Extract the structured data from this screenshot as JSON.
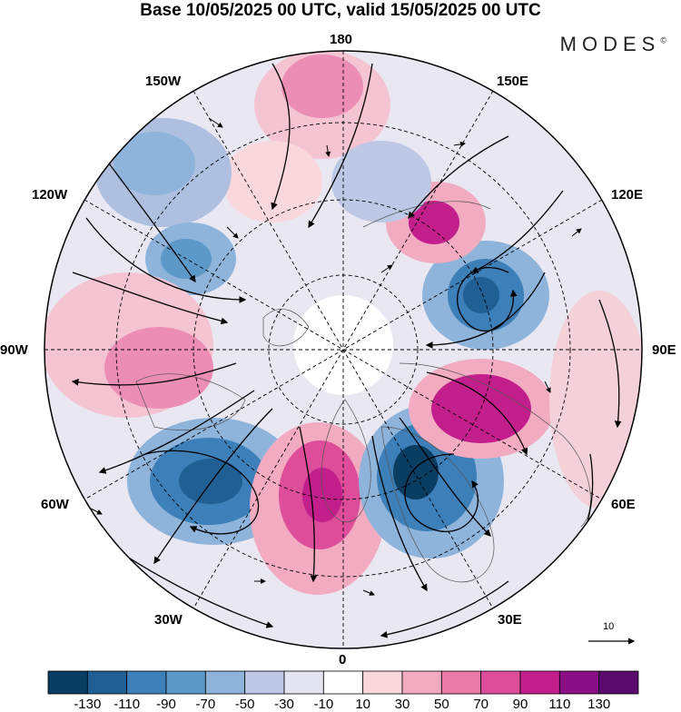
{
  "title": "Base 10/05/2025 00 UTC, valid 15/05/2025 00 UTC",
  "logo": {
    "text": "MODES",
    "mark": "©"
  },
  "longitude_labels": {
    "north": "180",
    "n_left": "150W",
    "n_right": "150E",
    "left_upper": "120W",
    "right_upper": "120E",
    "west": "90W",
    "east": "90E",
    "left_lower": "60W",
    "right_lower": "60E",
    "s_left": "30W",
    "s_right": "30E",
    "south": "0"
  },
  "reference_vector": {
    "label": "10"
  },
  "colorbar": {
    "colors": [
      "#0a3d62",
      "#1f5f93",
      "#3d7fb8",
      "#5c98c8",
      "#8eb4dc",
      "#bcc8e4",
      "#e4e4f2",
      "#ffffff",
      "#f8d8dc",
      "#f2abc0",
      "#ea7aa8",
      "#dd4d9a",
      "#c21f8d",
      "#8a0f85",
      "#5a0c6e"
    ],
    "tick_labels": [
      "-130",
      "-110",
      "-90",
      "-70",
      "-50",
      "-30",
      "-10",
      "10",
      "30",
      "50",
      "70",
      "90",
      "110",
      "130"
    ]
  },
  "map": {
    "field": "height anomaly",
    "projection": "north polar stereographic",
    "anomalies": [
      {
        "sign": "positive",
        "bearing": "180",
        "strength": 70
      },
      {
        "sign": "negative",
        "bearing": "150W",
        "strength": -50
      },
      {
        "sign": "negative",
        "bearing": "120W",
        "strength": -70
      },
      {
        "sign": "positive",
        "bearing": "90W",
        "strength": 70
      },
      {
        "sign": "negative",
        "bearing": "60W",
        "strength": -110
      },
      {
        "sign": "positive",
        "bearing": "30W",
        "strength": 110
      },
      {
        "sign": "negative",
        "bearing": "30E",
        "strength": -130
      },
      {
        "sign": "positive",
        "bearing": "60E",
        "strength": 110
      },
      {
        "sign": "negative",
        "bearing": "90E",
        "strength": -110
      },
      {
        "sign": "positive",
        "bearing": "120E",
        "strength": 110
      },
      {
        "sign": "negative",
        "bearing": "150E",
        "strength": -30
      }
    ]
  }
}
